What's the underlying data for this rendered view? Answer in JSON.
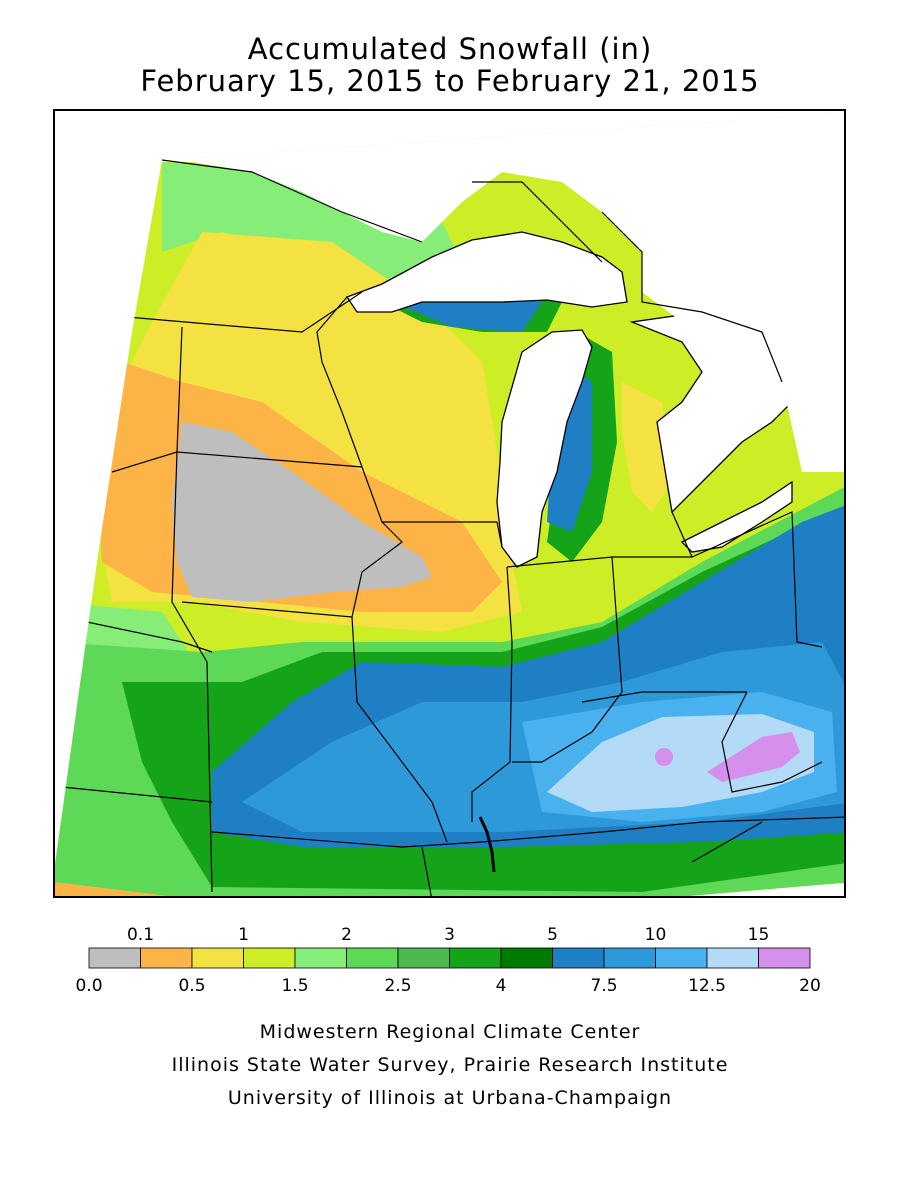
{
  "title": {
    "line1": "Accumulated Snowfall (in)",
    "line2": "February 15, 2015 to February 21, 2015"
  },
  "legend": {
    "top_labels": [
      "0.1",
      "1",
      "2",
      "3",
      "5",
      "10",
      "15"
    ],
    "bottom_labels": [
      "0.0",
      "0.5",
      "1.5",
      "2.5",
      "4",
      "7.5",
      "12.5",
      "20"
    ],
    "bins": [
      {
        "range": "0.0-0.1",
        "color": "#bebebe"
      },
      {
        "range": "0.1-0.5",
        "color": "#fdb447"
      },
      {
        "range": "0.5-1",
        "color": "#f4e142"
      },
      {
        "range": "1-1.5",
        "color": "#cdee27"
      },
      {
        "range": "1.5-2",
        "color": "#86ee78"
      },
      {
        "range": "2-2.5",
        "color": "#5dd957"
      },
      {
        "range": "2.5-3",
        "color": "#4db84d"
      },
      {
        "range": "3-4",
        "color": "#15a31a"
      },
      {
        "range": "4-5",
        "color": "#007a00"
      },
      {
        "range": "5-7.5",
        "color": "#1f7fc4"
      },
      {
        "range": "7.5-10",
        "color": "#2e99d9"
      },
      {
        "range": "10-12.5",
        "color": "#48b1ee"
      },
      {
        "range": "12.5-15",
        "color": "#b3dbf7"
      },
      {
        "range": "15-20",
        "color": "#d58fed"
      }
    ]
  },
  "credits": {
    "line1": "Midwestern Regional Climate Center",
    "line2": "Illinois State Water Survey, Prairie Research Institute",
    "line3": "University of Illinois at Urbana-Champaign"
  }
}
